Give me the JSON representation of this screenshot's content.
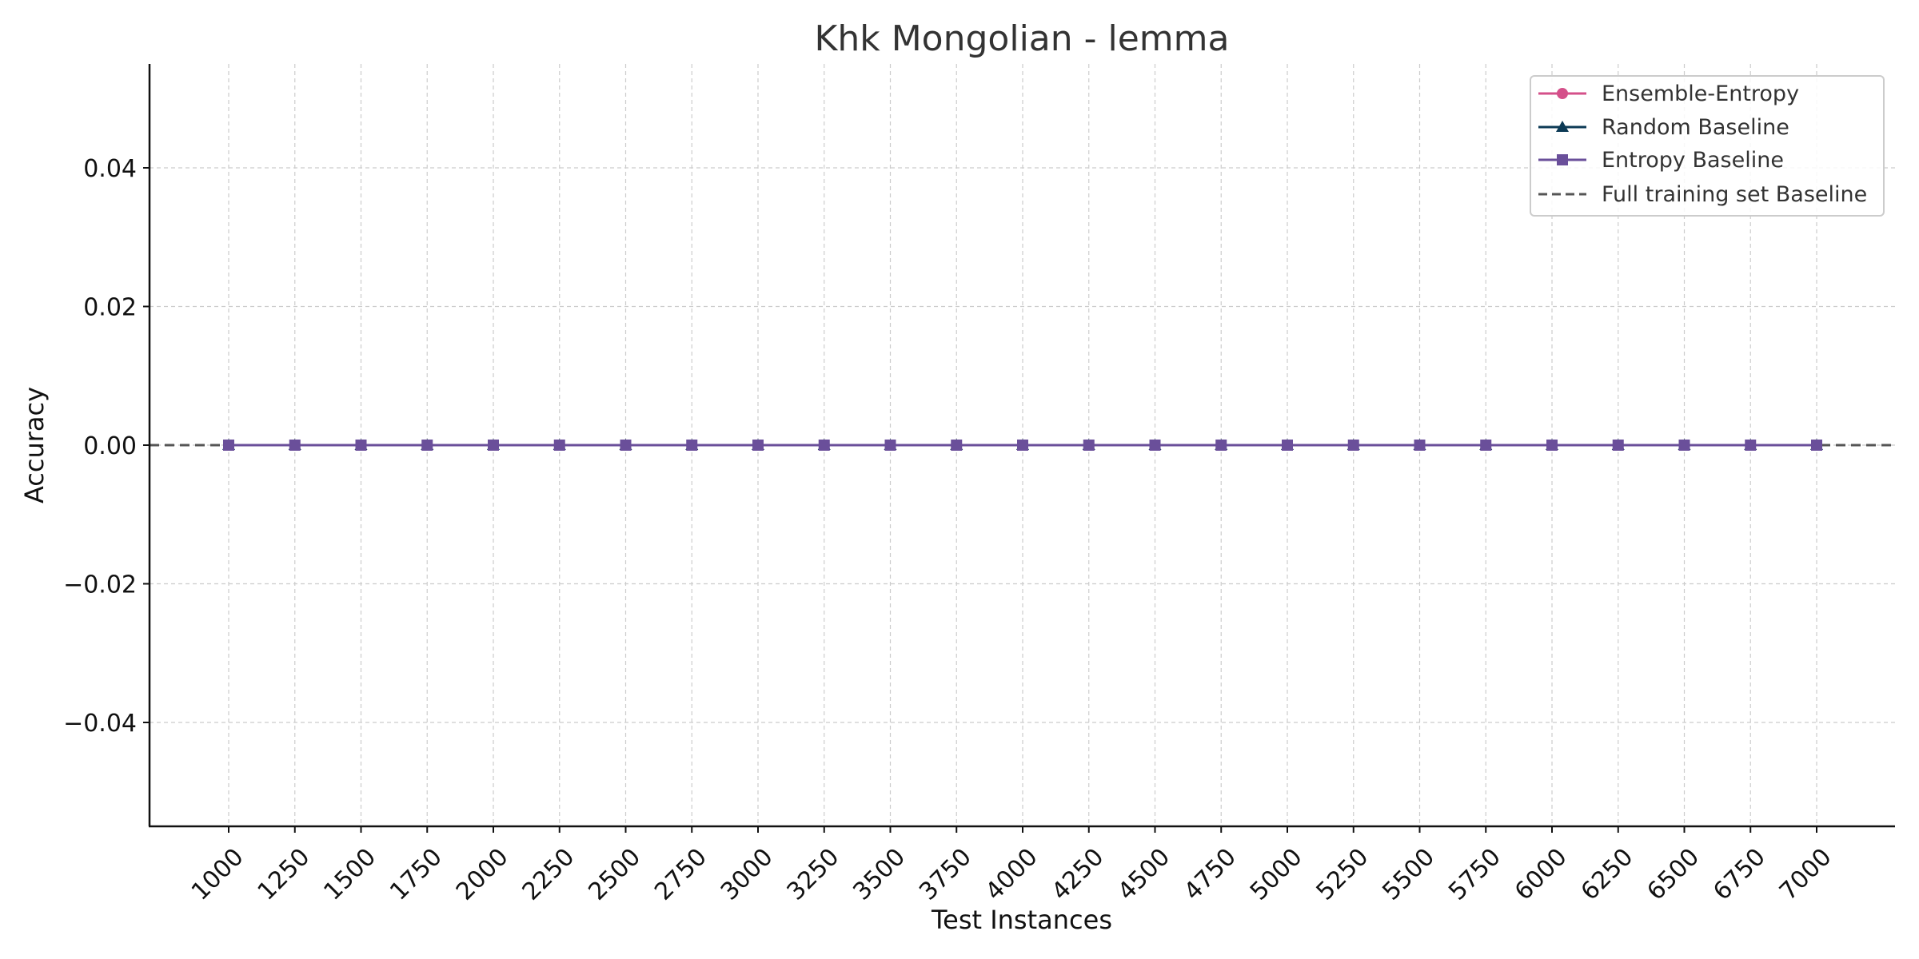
{
  "chart_data": {
    "type": "line",
    "title": "Khk Mongolian - lemma",
    "xlabel": "Test Instances",
    "ylabel": "Accuracy",
    "x": [
      1000,
      1250,
      1500,
      1750,
      2000,
      2250,
      2500,
      2750,
      3000,
      3250,
      3500,
      3750,
      4000,
      4250,
      4500,
      4750,
      5000,
      5250,
      5500,
      5750,
      6000,
      6250,
      6500,
      6750,
      7000
    ],
    "x_tick_labels": [
      "1000",
      "1250",
      "1500",
      "1750",
      "2000",
      "2250",
      "2500",
      "2750",
      "3000",
      "3250",
      "3500",
      "3750",
      "4000",
      "4250",
      "4500",
      "4750",
      "5000",
      "5250",
      "5500",
      "5750",
      "6000",
      "6250",
      "6500",
      "6750",
      "7000"
    ],
    "y_ticks": [
      -0.04,
      -0.02,
      0.0,
      0.02,
      0.04
    ],
    "y_tick_labels": [
      "−0.04",
      "−0.02",
      "0.00",
      "0.02",
      "0.04"
    ],
    "ylim": [
      -0.055,
      0.055
    ],
    "grid": true,
    "legend_position": "top-right",
    "series": [
      {
        "name": "Ensemble-Entropy",
        "marker": "circle",
        "color": "#d4508a",
        "values": [
          0,
          0,
          0,
          0,
          0,
          0,
          0,
          0,
          0,
          0,
          0,
          0,
          0,
          0,
          0,
          0,
          0,
          0,
          0,
          0,
          0,
          0,
          0,
          0,
          0
        ]
      },
      {
        "name": "Random Baseline",
        "marker": "triangle",
        "color": "#0c3a55",
        "values": [
          0,
          0,
          0,
          0,
          0,
          0,
          0,
          0,
          0,
          0,
          0,
          0,
          0,
          0,
          0,
          0,
          0,
          0,
          0,
          0,
          0,
          0,
          0,
          0,
          0
        ]
      },
      {
        "name": "Entropy Baseline",
        "marker": "square",
        "color": "#6a4f9a",
        "values": [
          0,
          0,
          0,
          0,
          0,
          0,
          0,
          0,
          0,
          0,
          0,
          0,
          0,
          0,
          0,
          0,
          0,
          0,
          0,
          0,
          0,
          0,
          0,
          0,
          0
        ]
      }
    ],
    "reference_line": {
      "name": "Full training set Baseline",
      "value": 0.0,
      "style": "dashed",
      "color": "#555555"
    }
  }
}
